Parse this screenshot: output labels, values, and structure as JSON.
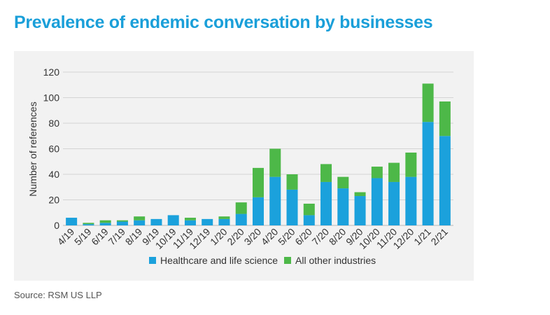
{
  "title": "Prevalence of endemic conversation by businesses",
  "source": "Source: RSM US LLP",
  "chart_data": {
    "type": "bar",
    "stacked": true,
    "ylabel": "Number of references",
    "xlabel": "",
    "ylim": [
      0,
      120
    ],
    "yticks": [
      0,
      20,
      40,
      60,
      80,
      100,
      120
    ],
    "grid": true,
    "legend_position": "bottom",
    "categories": [
      "4/19",
      "5/19",
      "6/19",
      "7/19",
      "8/19",
      "9/19",
      "10/19",
      "11/19",
      "12/19",
      "1/20",
      "2/20",
      "3/20",
      "4/20",
      "5/20",
      "6/20",
      "7/20",
      "8/20",
      "9/20",
      "10/20",
      "11/20",
      "12/20",
      "1/21",
      "2/21"
    ],
    "series": [
      {
        "name": "Healthcare and life science",
        "color": "#1ba1dc",
        "values": [
          6,
          1,
          2,
          3,
          4,
          5,
          8,
          4,
          5,
          5,
          9,
          22,
          38,
          28,
          8,
          34,
          29,
          23,
          37,
          34,
          38,
          81,
          70
        ]
      },
      {
        "name": "All other industries",
        "color": "#4db848",
        "values": [
          0,
          1,
          2,
          1,
          3,
          0,
          0,
          2,
          0,
          2,
          9,
          23,
          22,
          12,
          9,
          14,
          9,
          3,
          9,
          15,
          19,
          30,
          27
        ]
      }
    ]
  }
}
